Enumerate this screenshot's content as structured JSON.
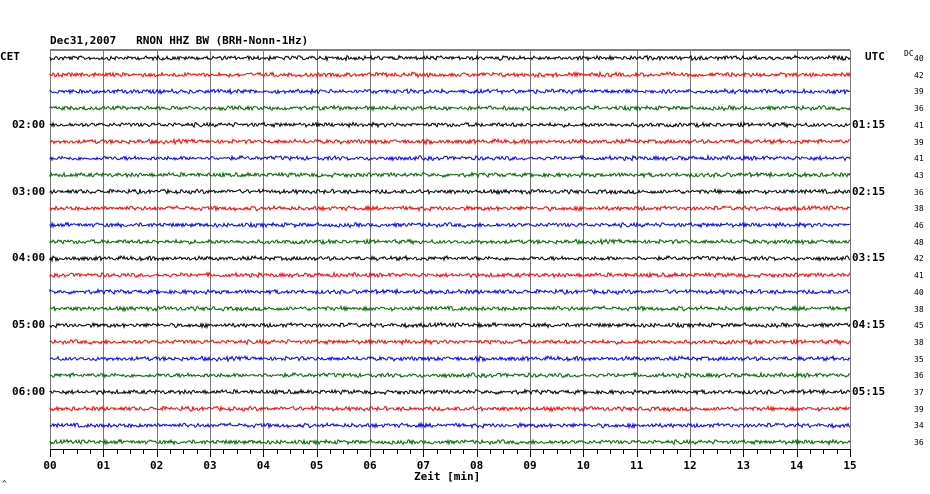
{
  "header": {
    "title": "Dec31,2007   RNON HHZ BW (BRH-Nonn-1Hz)",
    "left_unit": "CET",
    "right_unit": "UTC",
    "dc_header": "DC"
  },
  "chart_data": {
    "type": "line",
    "title": "Dec31,2007   RNON HHZ BW (BRH-Nonn-1Hz)",
    "xlabel": "Zeit [min]",
    "xlim": [
      0,
      15
    ],
    "x_ticks": [
      "00",
      "01",
      "02",
      "03",
      "04",
      "05",
      "06",
      "07",
      "08",
      "09",
      "10",
      "11",
      "12",
      "13",
      "14",
      "15"
    ],
    "grid": true,
    "trace_count": 24,
    "trace_colors": [
      "#000000",
      "#ff0000",
      "#0000ff",
      "#006400"
    ],
    "cet_labels": [
      {
        "trace_index": 4,
        "label": "02:00"
      },
      {
        "trace_index": 8,
        "label": "03:00"
      },
      {
        "trace_index": 12,
        "label": "04:00"
      },
      {
        "trace_index": 16,
        "label": "05:00"
      },
      {
        "trace_index": 20,
        "label": "06:00"
      }
    ],
    "utc_labels": [
      {
        "trace_index": 4,
        "label": "01:15"
      },
      {
        "trace_index": 8,
        "label": "02:15"
      },
      {
        "trace_index": 12,
        "label": "03:15"
      },
      {
        "trace_index": 16,
        "label": "04:15"
      },
      {
        "trace_index": 20,
        "label": "05:15"
      }
    ],
    "dc_values": [
      "40",
      "42",
      "39",
      "36",
      "41",
      "39",
      "41",
      "43",
      "36",
      "38",
      "46",
      "48",
      "42",
      "41",
      "40",
      "38",
      "45",
      "38",
      "35",
      "36",
      "37",
      "39",
      "34",
      "36"
    ]
  },
  "footer": {
    "corner_mark": "^"
  }
}
